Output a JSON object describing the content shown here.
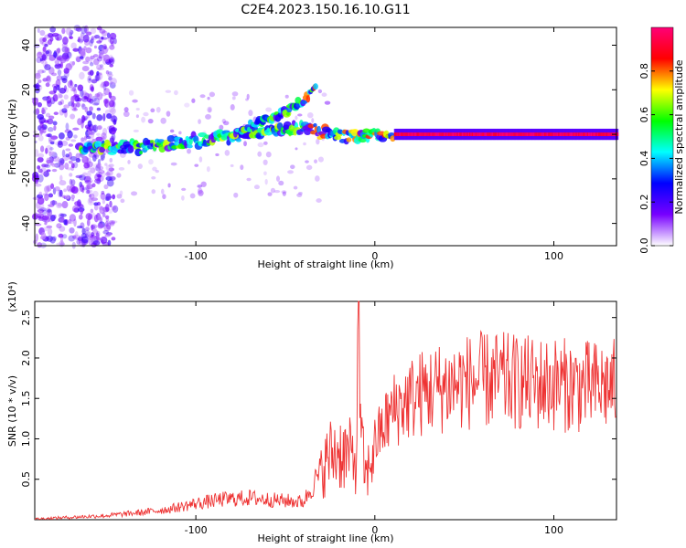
{
  "figure_title": "C2E4.2023.150.16.10.G11",
  "chart_data": [
    {
      "type": "heatmap",
      "title": "C2E4.2023.150.16.10.G11",
      "xlabel": "Height of straight line (km)",
      "ylabel": "Frequency (Hz)",
      "xlim": [
        -190,
        135
      ],
      "ylim": [
        -50,
        48
      ],
      "xticks": [
        -100,
        0,
        100
      ],
      "yticks": [
        -40,
        -20,
        0,
        20,
        40
      ],
      "colorbar": {
        "label": "Normalized spectral amplitude",
        "range": [
          0.0,
          1.0
        ],
        "ticks": [
          0.0,
          0.2,
          0.4,
          0.6,
          0.8
        ],
        "tick_labels": [
          "0.0",
          "0.2",
          "0.4",
          "0.6",
          "0.8"
        ],
        "colormap": [
          "#ffffff",
          "#7700ff",
          "#0000ff",
          "#00ffff",
          "#00ff00",
          "#ffff00",
          "#ff0000",
          "#ff0077"
        ]
      },
      "features": [
        {
          "name": "main-trace",
          "x": [
            -165,
            -140,
            -120,
            -100,
            -80,
            -60,
            -40,
            -30,
            -20,
            -10,
            0,
            50,
            100,
            135
          ],
          "y": [
            -6,
            -6,
            -5,
            -3,
            -1,
            1,
            3,
            1,
            0,
            -1,
            0,
            0,
            0,
            0
          ]
        },
        {
          "name": "upper-trace",
          "x": [
            -80,
            -70,
            -60,
            -50,
            -40,
            -33
          ],
          "y": [
            -1,
            4,
            7,
            10,
            15,
            22
          ]
        }
      ]
    },
    {
      "type": "line",
      "xlabel": "Height of straight line (km)",
      "ylabel": "SNR (10 * v/v)",
      "y_multiplier": "(x10⁴)",
      "xlim": [
        -190,
        135
      ],
      "ylim": [
        0,
        2.7
      ],
      "xticks": [
        -100,
        0,
        100
      ],
      "yticks": [
        0.5,
        1.0,
        1.5,
        2.0,
        2.5
      ],
      "color": "#ee3333",
      "series": [
        {
          "x": [
            -190,
            -170,
            -150,
            -130,
            -115,
            -100,
            -85,
            -70,
            -55,
            -40,
            -30,
            -25,
            -20,
            -15,
            -10,
            -9,
            -8,
            -5,
            0,
            5,
            10,
            20,
            30,
            40,
            50,
            60,
            70,
            80,
            90,
            100,
            110,
            120,
            135
          ],
          "y": [
            0.01,
            0.03,
            0.05,
            0.09,
            0.13,
            0.2,
            0.25,
            0.27,
            0.24,
            0.22,
            0.6,
            0.8,
            0.85,
            0.8,
            0.75,
            2.7,
            1.0,
            0.5,
            0.95,
            1.15,
            1.35,
            1.5,
            1.6,
            1.65,
            1.7,
            1.72,
            1.72,
            1.7,
            1.68,
            1.68,
            1.66,
            1.64,
            1.66
          ]
        }
      ]
    }
  ]
}
